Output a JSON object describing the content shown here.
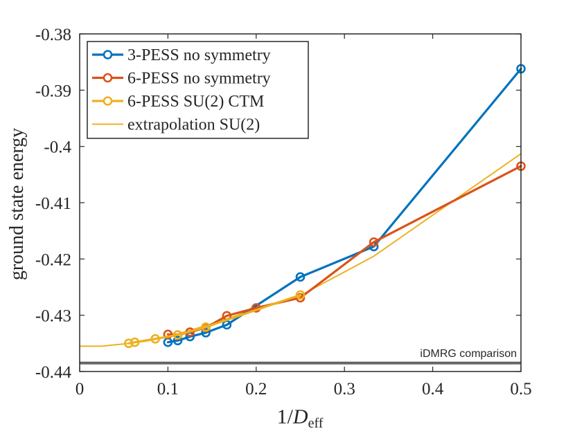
{
  "chart_data": {
    "type": "line",
    "xlabel_main": "1/",
    "xlabel_var": "D",
    "xlabel_sub": "eff",
    "ylabel": "ground state energy",
    "xlim": [
      0,
      0.5
    ],
    "ylim": [
      -0.44,
      -0.38
    ],
    "xticks": [
      0,
      0.1,
      0.2,
      0.3,
      0.4,
      0.5
    ],
    "xtick_labels": [
      "0",
      "0.1",
      "0.2",
      "0.3",
      "0.4",
      "0.5"
    ],
    "yticks": [
      -0.38,
      -0.39,
      -0.4,
      -0.41,
      -0.42,
      -0.43,
      -0.44
    ],
    "ytick_labels": [
      "-0.38",
      "-0.39",
      "-0.4",
      "-0.41",
      "-0.42",
      "-0.43",
      "-0.44"
    ],
    "legend_position": "top-left",
    "series": [
      {
        "name": "3-PESS no symmetry",
        "color": "#0072BD",
        "marker": "circle",
        "x": [
          0.1,
          0.1111,
          0.125,
          0.1429,
          0.1667,
          0.25,
          0.3333,
          0.5
        ],
        "y": [
          -0.4348,
          -0.4345,
          -0.4338,
          -0.4331,
          -0.4317,
          -0.4232,
          -0.4178,
          -0.3862
        ]
      },
      {
        "name": "6-PESS no symmetry",
        "color": "#D95319",
        "marker": "circle",
        "x": [
          0.1,
          0.1111,
          0.125,
          0.1429,
          0.1667,
          0.2,
          0.25,
          0.3333,
          0.5
        ],
        "y": [
          -0.4334,
          -0.4335,
          -0.433,
          -0.4322,
          -0.4301,
          -0.4287,
          -0.4269,
          -0.417,
          -0.4035
        ]
      },
      {
        "name": "6-PESS SU(2) CTM",
        "color": "#EDB120",
        "marker": "circle",
        "x": [
          0.0556,
          0.0625,
          0.0857,
          0.1111,
          0.1429,
          0.25
        ],
        "y": [
          -0.435,
          -0.4348,
          -0.4342,
          -0.4335,
          -0.4321,
          -0.4264
        ]
      },
      {
        "name": "extrapolation SU(2)",
        "color": "#EDB120",
        "marker": "none",
        "x": [
          0,
          0.025,
          0.05,
          0.075,
          0.1,
          0.125,
          0.15,
          0.175,
          0.2,
          0.25,
          0.3333,
          0.5
        ],
        "y": [
          -0.4355,
          -0.4355,
          -0.4351,
          -0.4346,
          -0.4338,
          -0.4327,
          -0.4315,
          -0.4302,
          -0.4288,
          -0.4265,
          -0.4195,
          -0.4013
        ]
      }
    ],
    "reference_line": {
      "label": "iDMRG comparison",
      "y": -0.4385,
      "color": "#666666"
    }
  }
}
